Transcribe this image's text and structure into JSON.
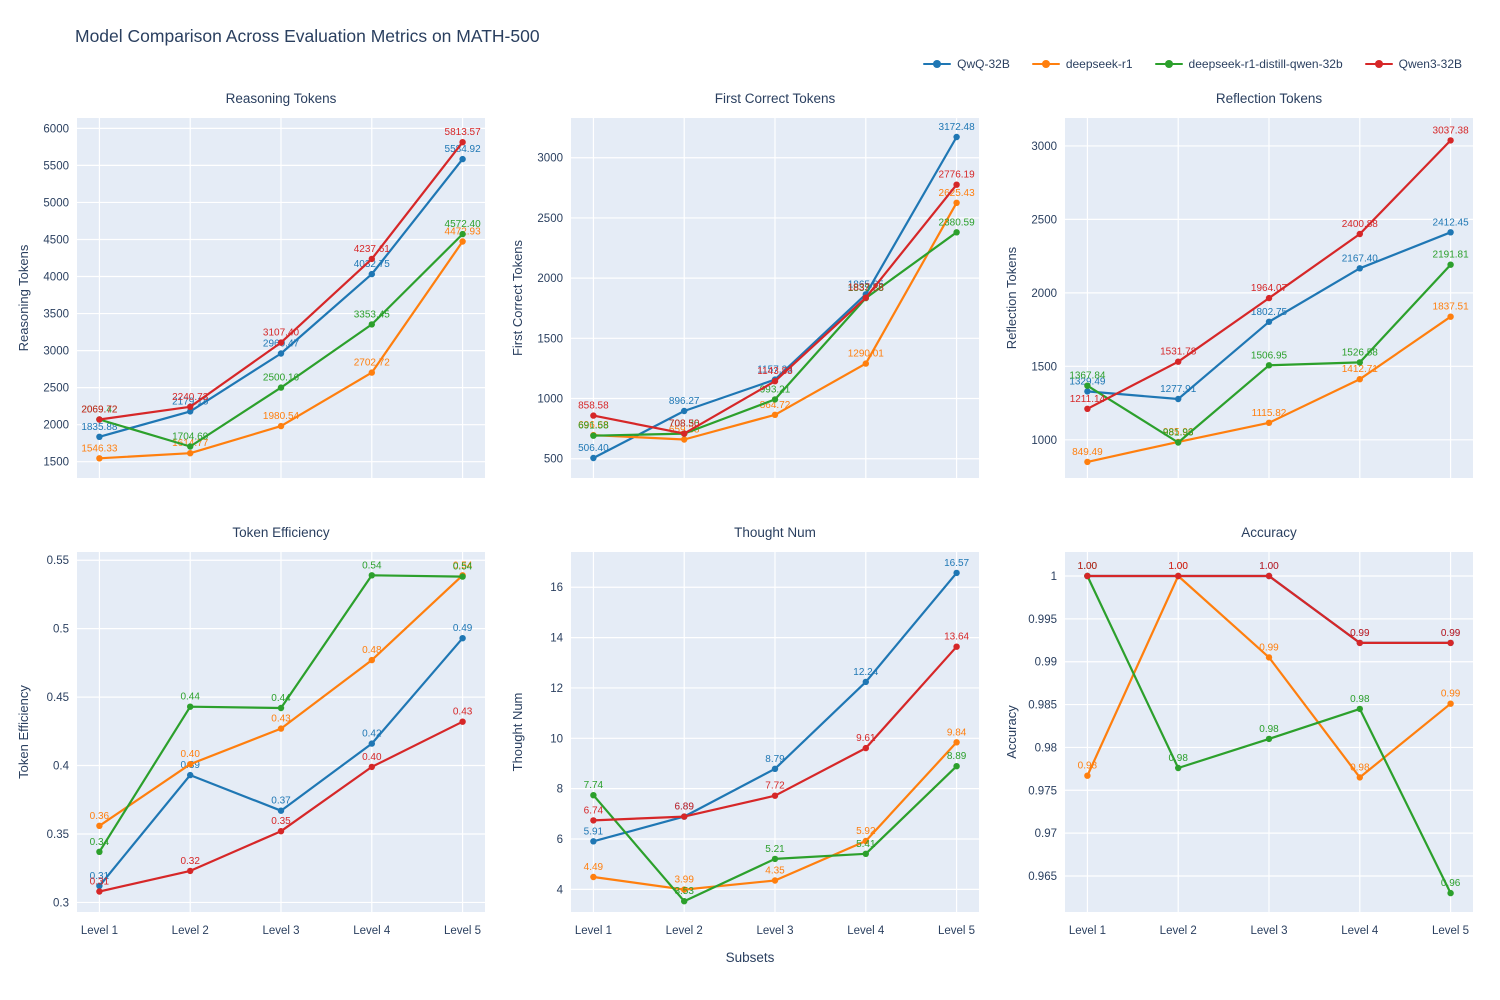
{
  "title": "Model Comparison Across Evaluation Metrics on MATH-500",
  "xlabel": "Subsets",
  "categories": [
    "Level 1",
    "Level 2",
    "Level 3",
    "Level 4",
    "Level 5"
  ],
  "colors": {
    "plot_bg": "#e5ecf6",
    "grid": "#ffffff",
    "text": "#2a3f5f",
    "blue": "#1f77b4",
    "orange": "#ff7f0e",
    "green": "#2ca02c",
    "red": "#d62728"
  },
  "legend": [
    {
      "name": "QwQ-32B",
      "color": "#1f77b4"
    },
    {
      "name": "deepseek-r1",
      "color": "#ff7f0e"
    },
    {
      "name": "deepseek-r1-distill-qwen-32b",
      "color": "#2ca02c"
    },
    {
      "name": "Qwen3-32B",
      "color": "#d62728"
    }
  ],
  "chart_data": [
    {
      "type": "line",
      "title": "Reasoning Tokens",
      "ylabel": "Reasoning Tokens",
      "ylim": [
        1280,
        6140
      ],
      "yticks": [
        1500,
        2000,
        2500,
        3000,
        3500,
        4000,
        4500,
        5000,
        5500,
        6000
      ],
      "ytick_labels": [
        "1500",
        "2000",
        "2500",
        "3000",
        "3500",
        "4000",
        "4500",
        "5000",
        "5500",
        "6000"
      ],
      "show_x_labels": false,
      "series": [
        {
          "name": "QwQ-32B",
          "color": "#1f77b4",
          "values": [
            1835.88,
            2179.18,
            2960.47,
            4032.75,
            5584.92
          ],
          "labels": [
            "1835.88",
            "2179.18",
            "2960.47",
            "4032.75",
            "5584.92"
          ]
        },
        {
          "name": "deepseek-r1",
          "color": "#ff7f0e",
          "values": [
            1546.33,
            1614.77,
            1980.54,
            2702.72,
            4472.93
          ],
          "labels": [
            "1546.33",
            "1614.77",
            "1980.54",
            "2702.72",
            "4472.93"
          ]
        },
        {
          "name": "deepseek-r1-distill-qwen-32b",
          "color": "#2ca02c",
          "values": [
            2069.42,
            1704.69,
            2500.16,
            3353.45,
            4572.4
          ],
          "labels": [
            "2069.42",
            "1704.69",
            "2500.16",
            "3353.45",
            "4572.40"
          ]
        },
        {
          "name": "Qwen3-32B",
          "color": "#d62728",
          "values": [
            2069.72,
            2240.73,
            3107.4,
            4237.61,
            5813.57
          ],
          "labels": [
            "2069.72",
            "2240.73",
            "3107.40",
            "4237.61",
            "5813.57"
          ]
        }
      ]
    },
    {
      "type": "line",
      "title": "First Correct Tokens",
      "ylabel": "First Correct Tokens",
      "ylim": [
        340,
        3330
      ],
      "yticks": [
        500,
        1000,
        1500,
        2000,
        2500,
        3000
      ],
      "ytick_labels": [
        "500",
        "1000",
        "1500",
        "2000",
        "2500",
        "3000"
      ],
      "show_x_labels": false,
      "series": [
        {
          "name": "QwQ-32B",
          "color": "#1f77b4",
          "values": [
            506.4,
            896.27,
            1157.33,
            1865.65,
            3172.48
          ],
          "labels": [
            "506.40",
            "896.27",
            "1157.33",
            "1865.65",
            "3172.48"
          ]
        },
        {
          "name": "deepseek-r1",
          "color": "#ff7f0e",
          "values": [
            696.68,
            659.38,
            864.72,
            1290.01,
            2625.43
          ],
          "labels": [
            "696.68",
            "659.38",
            "864.72",
            "1290.01",
            "2625.43"
          ]
        },
        {
          "name": "deepseek-r1-distill-qwen-32b",
          "color": "#2ca02c",
          "values": [
            691.58,
            708.36,
            993.21,
            1833.88,
            2380.59
          ],
          "labels": [
            "691.58",
            "708.36",
            "993.21",
            "1833.88",
            "2380.59"
          ]
        },
        {
          "name": "Qwen3-32B",
          "color": "#d62728",
          "values": [
            858.58,
            708.5,
            1143.83,
            1837.28,
            2776.19
          ],
          "labels": [
            "858.58",
            "708.50",
            "1143.83",
            "1837.28",
            "2776.19"
          ]
        }
      ]
    },
    {
      "type": "line",
      "title": "Reflection Tokens",
      "ylabel": "Reflection Tokens",
      "ylim": [
        740,
        3190
      ],
      "yticks": [
        1000,
        1500,
        2000,
        2500,
        3000
      ],
      "ytick_labels": [
        "1000",
        "1500",
        "2000",
        "2500",
        "3000"
      ],
      "show_x_labels": false,
      "series": [
        {
          "name": "QwQ-32B",
          "color": "#1f77b4",
          "values": [
            1329.49,
            1277.91,
            1802.75,
            2167.4,
            2412.45
          ],
          "labels": [
            "1329.49",
            "1277.91",
            "1802.75",
            "2167.40",
            "2412.45"
          ]
        },
        {
          "name": "deepseek-r1",
          "color": "#ff7f0e",
          "values": [
            849.49,
            985.96,
            1115.82,
            1412.71,
            1837.51
          ],
          "labels": [
            "849.49",
            "985.96",
            "1115.82",
            "1412.71",
            "1837.51"
          ]
        },
        {
          "name": "deepseek-r1-distill-qwen-32b",
          "color": "#2ca02c",
          "values": [
            1367.84,
            981.93,
            1506.95,
            1526.58,
            2191.81
          ],
          "labels": [
            "1367.84",
            "981.93",
            "1506.95",
            "1526.58",
            "2191.81"
          ]
        },
        {
          "name": "Qwen3-32B",
          "color": "#d62728",
          "values": [
            1211.14,
            1531.78,
            1964.07,
            2400.88,
            3037.38
          ],
          "labels": [
            "1211.14",
            "1531.78",
            "1964.07",
            "2400.88",
            "3037.38"
          ]
        }
      ]
    },
    {
      "type": "line",
      "title": "Token Efficiency",
      "ylabel": "Token Efficiency",
      "ylim": [
        0.293,
        0.556
      ],
      "yticks": [
        0.3,
        0.35,
        0.4,
        0.45,
        0.5,
        0.55
      ],
      "ytick_labels": [
        "0.3",
        "0.35",
        "0.4",
        "0.45",
        "0.5",
        "0.55"
      ],
      "show_x_labels": true,
      "series": [
        {
          "name": "QwQ-32B",
          "color": "#1f77b4",
          "values": [
            0.312,
            0.393,
            0.367,
            0.416,
            0.493
          ],
          "labels": [
            "0.31",
            "0.39",
            "0.37",
            "0.42",
            "0.49"
          ]
        },
        {
          "name": "deepseek-r1",
          "color": "#ff7f0e",
          "values": [
            0.356,
            0.401,
            0.427,
            0.477,
            0.539
          ],
          "labels": [
            "0.36",
            "0.40",
            "0.43",
            "0.48",
            "0.54"
          ]
        },
        {
          "name": "deepseek-r1-distill-qwen-32b",
          "color": "#2ca02c",
          "values": [
            0.337,
            0.443,
            0.442,
            0.539,
            0.538
          ],
          "labels": [
            "0.34",
            "0.44",
            "0.44",
            "0.54",
            "0.54"
          ]
        },
        {
          "name": "Qwen3-32B",
          "color": "#d62728",
          "values": [
            0.308,
            0.323,
            0.352,
            0.399,
            0.432
          ],
          "labels": [
            "0.31",
            "0.32",
            "0.35",
            "0.40",
            "0.43"
          ]
        }
      ]
    },
    {
      "type": "line",
      "title": "Thought Num",
      "ylabel": "Thought Num",
      "ylim": [
        3.1,
        17.4
      ],
      "yticks": [
        4,
        6,
        8,
        10,
        12,
        14,
        16
      ],
      "ytick_labels": [
        "4",
        "6",
        "8",
        "10",
        "12",
        "14",
        "16"
      ],
      "show_x_labels": true,
      "series": [
        {
          "name": "QwQ-32B",
          "color": "#1f77b4",
          "values": [
            5.91,
            6.89,
            8.79,
            12.24,
            16.57
          ],
          "labels": [
            "5.91",
            "6.89",
            "8.79",
            "12.24",
            "16.57"
          ]
        },
        {
          "name": "deepseek-r1",
          "color": "#ff7f0e",
          "values": [
            4.49,
            3.99,
            4.35,
            5.92,
            9.84
          ],
          "labels": [
            "4.49",
            "3.99",
            "4.35",
            "5.92",
            "9.84"
          ]
        },
        {
          "name": "deepseek-r1-distill-qwen-32b",
          "color": "#2ca02c",
          "values": [
            7.74,
            3.53,
            5.21,
            5.41,
            8.89
          ],
          "labels": [
            "7.74",
            "3.53",
            "5.21",
            "5.41",
            "8.89"
          ]
        },
        {
          "name": "Qwen3-32B",
          "color": "#d62728",
          "values": [
            6.74,
            6.89,
            7.72,
            9.61,
            13.64
          ],
          "labels": [
            "6.74",
            "6.89",
            "7.72",
            "9.61",
            "13.64"
          ]
        }
      ]
    },
    {
      "type": "line",
      "title": "Accuracy",
      "ylabel": "Accuracy",
      "ylim": [
        0.9608,
        1.0028
      ],
      "yticks": [
        0.965,
        0.97,
        0.975,
        0.98,
        0.985,
        0.99,
        0.995,
        1
      ],
      "ytick_labels": [
        "0.965",
        "0.97",
        "0.975",
        "0.98",
        "0.985",
        "0.99",
        "0.995",
        "1"
      ],
      "show_x_labels": true,
      "series": [
        {
          "name": "QwQ-32B",
          "color": "#1f77b4",
          "values": [
            1.0,
            1.0,
            1.0,
            0.9922,
            0.9922
          ],
          "labels": [
            "1.00",
            "1.00",
            "1.00",
            "0.99",
            "0.99"
          ]
        },
        {
          "name": "deepseek-r1",
          "color": "#ff7f0e",
          "values": [
            0.9767,
            1.0,
            0.9905,
            0.9765,
            0.9851
          ],
          "labels": [
            "0.98",
            "1.00",
            "0.99",
            "0.98",
            "0.99"
          ]
        },
        {
          "name": "deepseek-r1-distill-qwen-32b",
          "color": "#2ca02c",
          "values": [
            1.0,
            0.9776,
            0.981,
            0.9845,
            0.963
          ],
          "labels": [
            "1.00",
            "0.98",
            "0.98",
            "0.98",
            "0.96"
          ]
        },
        {
          "name": "Qwen3-32B",
          "color": "#d62728",
          "values": [
            1.0,
            1.0,
            1.0,
            0.9922,
            0.9922
          ],
          "labels": [
            "1.00",
            "1.00",
            "1.00",
            "0.99",
            "0.99"
          ]
        }
      ]
    }
  ]
}
